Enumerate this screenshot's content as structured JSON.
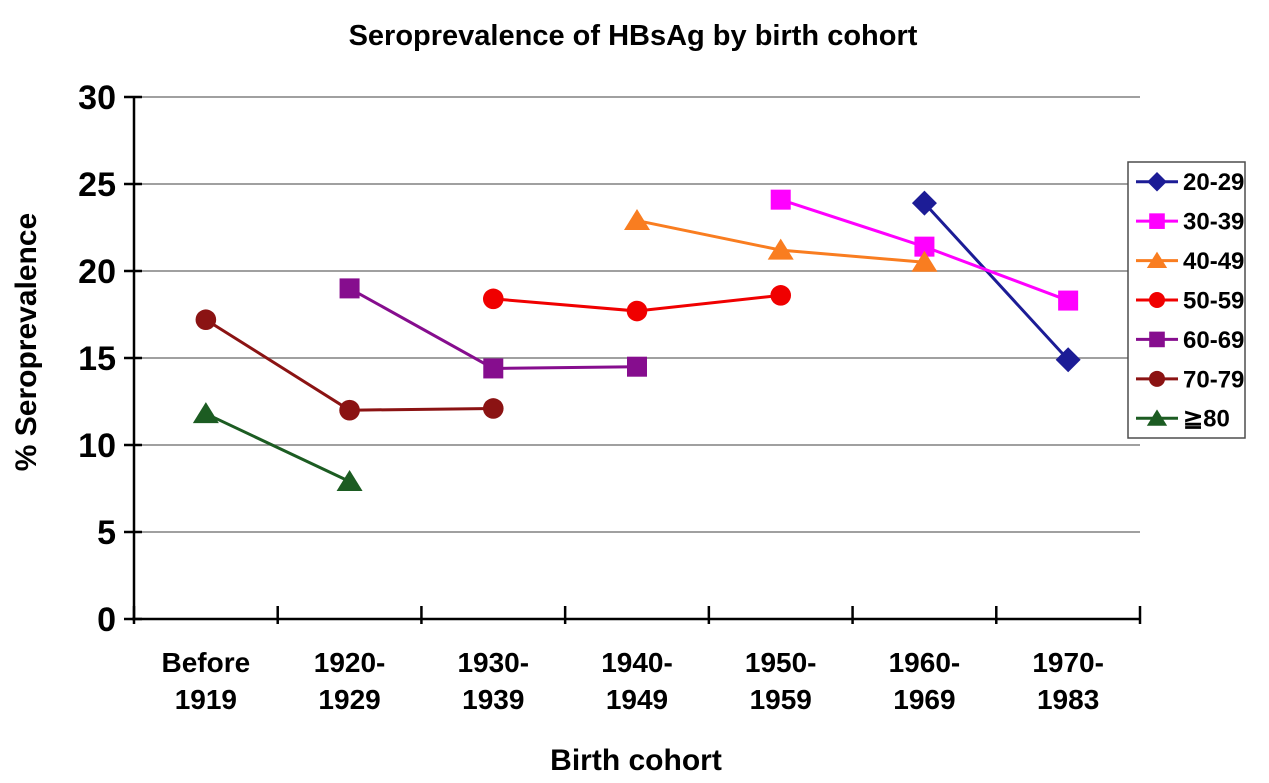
{
  "chart_data": {
    "type": "line",
    "title": "Seroprevalence of HBsAg by birth cohort",
    "xlabel": "Birth cohort",
    "ylabel": "% Seroprevalence",
    "ylim": [
      0,
      30
    ],
    "y_ticks": [
      0,
      5,
      10,
      15,
      20,
      25,
      30
    ],
    "grid": "horizontal",
    "legend_position": "right",
    "categories": [
      "Before 1919",
      "1920-1929",
      "1930-1939",
      "1940-1949",
      "1950-1959",
      "1960-1969",
      "1970-1983"
    ],
    "category_label_lines": [
      [
        "Before",
        "1919"
      ],
      [
        "1920-",
        "1929"
      ],
      [
        "1930-",
        "1939"
      ],
      [
        "1940-",
        "1949"
      ],
      [
        "1950-",
        "1959"
      ],
      [
        "1960-",
        "1969"
      ],
      [
        "1970-",
        "1983"
      ]
    ],
    "series": [
      {
        "name": "20-29",
        "color": "#1C1C96",
        "marker": "diamond",
        "values": [
          null,
          null,
          null,
          null,
          null,
          23.9,
          14.9
        ]
      },
      {
        "name": "30-39",
        "color": "#FF00FF",
        "marker": "square",
        "values": [
          null,
          null,
          null,
          null,
          24.1,
          21.4,
          18.3
        ]
      },
      {
        "name": "40-49",
        "color": "#F97D20",
        "marker": "triangle",
        "values": [
          null,
          null,
          null,
          22.9,
          21.2,
          20.5,
          null
        ]
      },
      {
        "name": "50-59",
        "color": "#F00000",
        "marker": "circle",
        "values": [
          null,
          null,
          18.4,
          17.7,
          18.6,
          null,
          null
        ]
      },
      {
        "name": "60-69",
        "color": "#860D8E",
        "marker": "square",
        "values": [
          null,
          19.0,
          14.4,
          14.5,
          null,
          null,
          null
        ]
      },
      {
        "name": "70-79",
        "color": "#8B1313",
        "marker": "circle",
        "values": [
          17.2,
          12.0,
          12.1,
          null,
          null,
          null,
          null
        ]
      },
      {
        "name": "≧80",
        "color": "#1C5C22",
        "marker": "triangle",
        "values": [
          11.8,
          7.9,
          null,
          null,
          null,
          null,
          null
        ]
      }
    ],
    "colors": {
      "background": "#FFFFFF",
      "grid": "#808080",
      "axis": "#000000",
      "text": "#000000",
      "legend_border": "#4D4D4D",
      "legend_fill": "#FFFFFF"
    }
  }
}
